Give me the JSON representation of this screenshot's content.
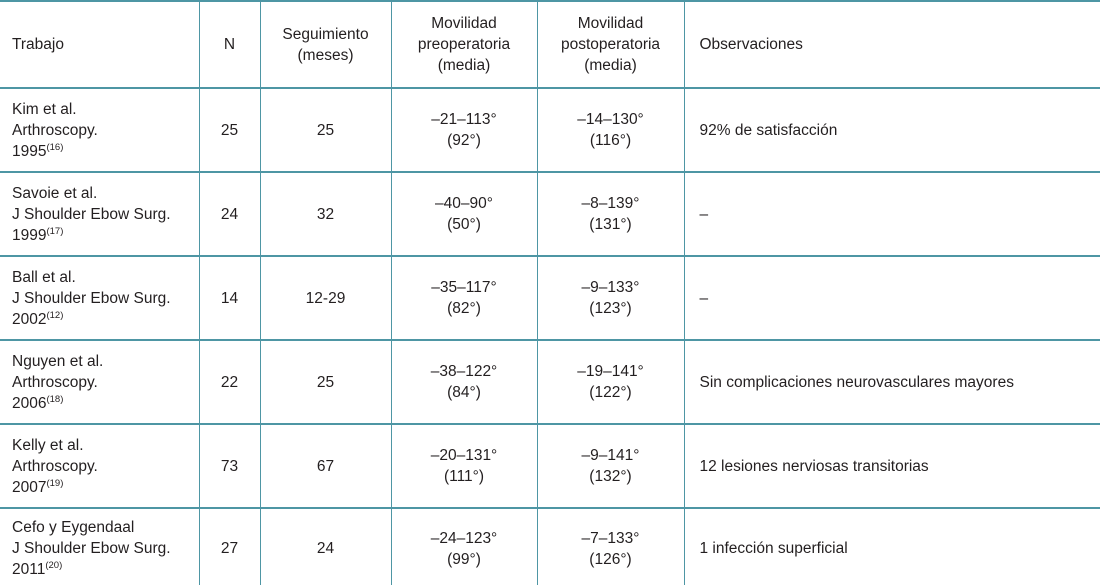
{
  "table": {
    "header": {
      "trabajo": "Trabajo",
      "n": "N",
      "seguimiento": "Seguimiento\n(meses)",
      "preop": "Movilidad\npreoperatoria\n(media)",
      "postop": "Movilidad\npostoperatoria\n(media)",
      "observaciones": "Observaciones"
    },
    "rows": [
      {
        "trabajo": "Kim et al.\nArthroscopy.",
        "year": "1995",
        "ref": "(16)",
        "n": "25",
        "seguimiento": "25",
        "preop": "–21–113°\n(92°)",
        "postop": "–14–130°\n(116°)",
        "obs": "92% de satisfacción"
      },
      {
        "trabajo": "Savoie et al.\nJ Shoulder Ebow Surg.",
        "year": "1999",
        "ref": "(17)",
        "n": "24",
        "seguimiento": "32",
        "preop": "–40–90°\n(50°)",
        "postop": "–8–139°\n(131°)",
        "obs": "–"
      },
      {
        "trabajo": "Ball et al.\nJ Shoulder Ebow Surg.",
        "year": "2002",
        "ref": "(12)",
        "n": "14",
        "seguimiento": "12-29",
        "preop": "–35–117°\n(82°)",
        "postop": "–9–133°\n(123°)",
        "obs": "–"
      },
      {
        "trabajo": "Nguyen et al.\nArthroscopy.",
        "year": "2006",
        "ref": "(18)",
        "n": "22",
        "seguimiento": "25",
        "preop": "–38–122°\n(84°)",
        "postop": "–19–141°\n(122°)",
        "obs": "Sin complicaciones neurovasculares mayores"
      },
      {
        "trabajo": "Kelly et al.\nArthroscopy.",
        "year": "2007",
        "ref": "(19)",
        "n": "73",
        "seguimiento": "67",
        "preop": "–20–131°\n(111°)",
        "postop": "–9–141°\n(132°)",
        "obs": "12 lesiones nerviosas transitorias"
      },
      {
        "trabajo": "Cefo y Eygendaal\nJ Shoulder Ebow Surg.",
        "year": "2011",
        "ref": "(20)",
        "n": "27",
        "seguimiento": "24",
        "preop": "–24–123°\n(99°)",
        "postop": "–7–133°\n(126°)",
        "obs": "1 infección superficial"
      }
    ],
    "colors": {
      "border_teal": "#4e96a4",
      "text": "#231f20"
    }
  }
}
